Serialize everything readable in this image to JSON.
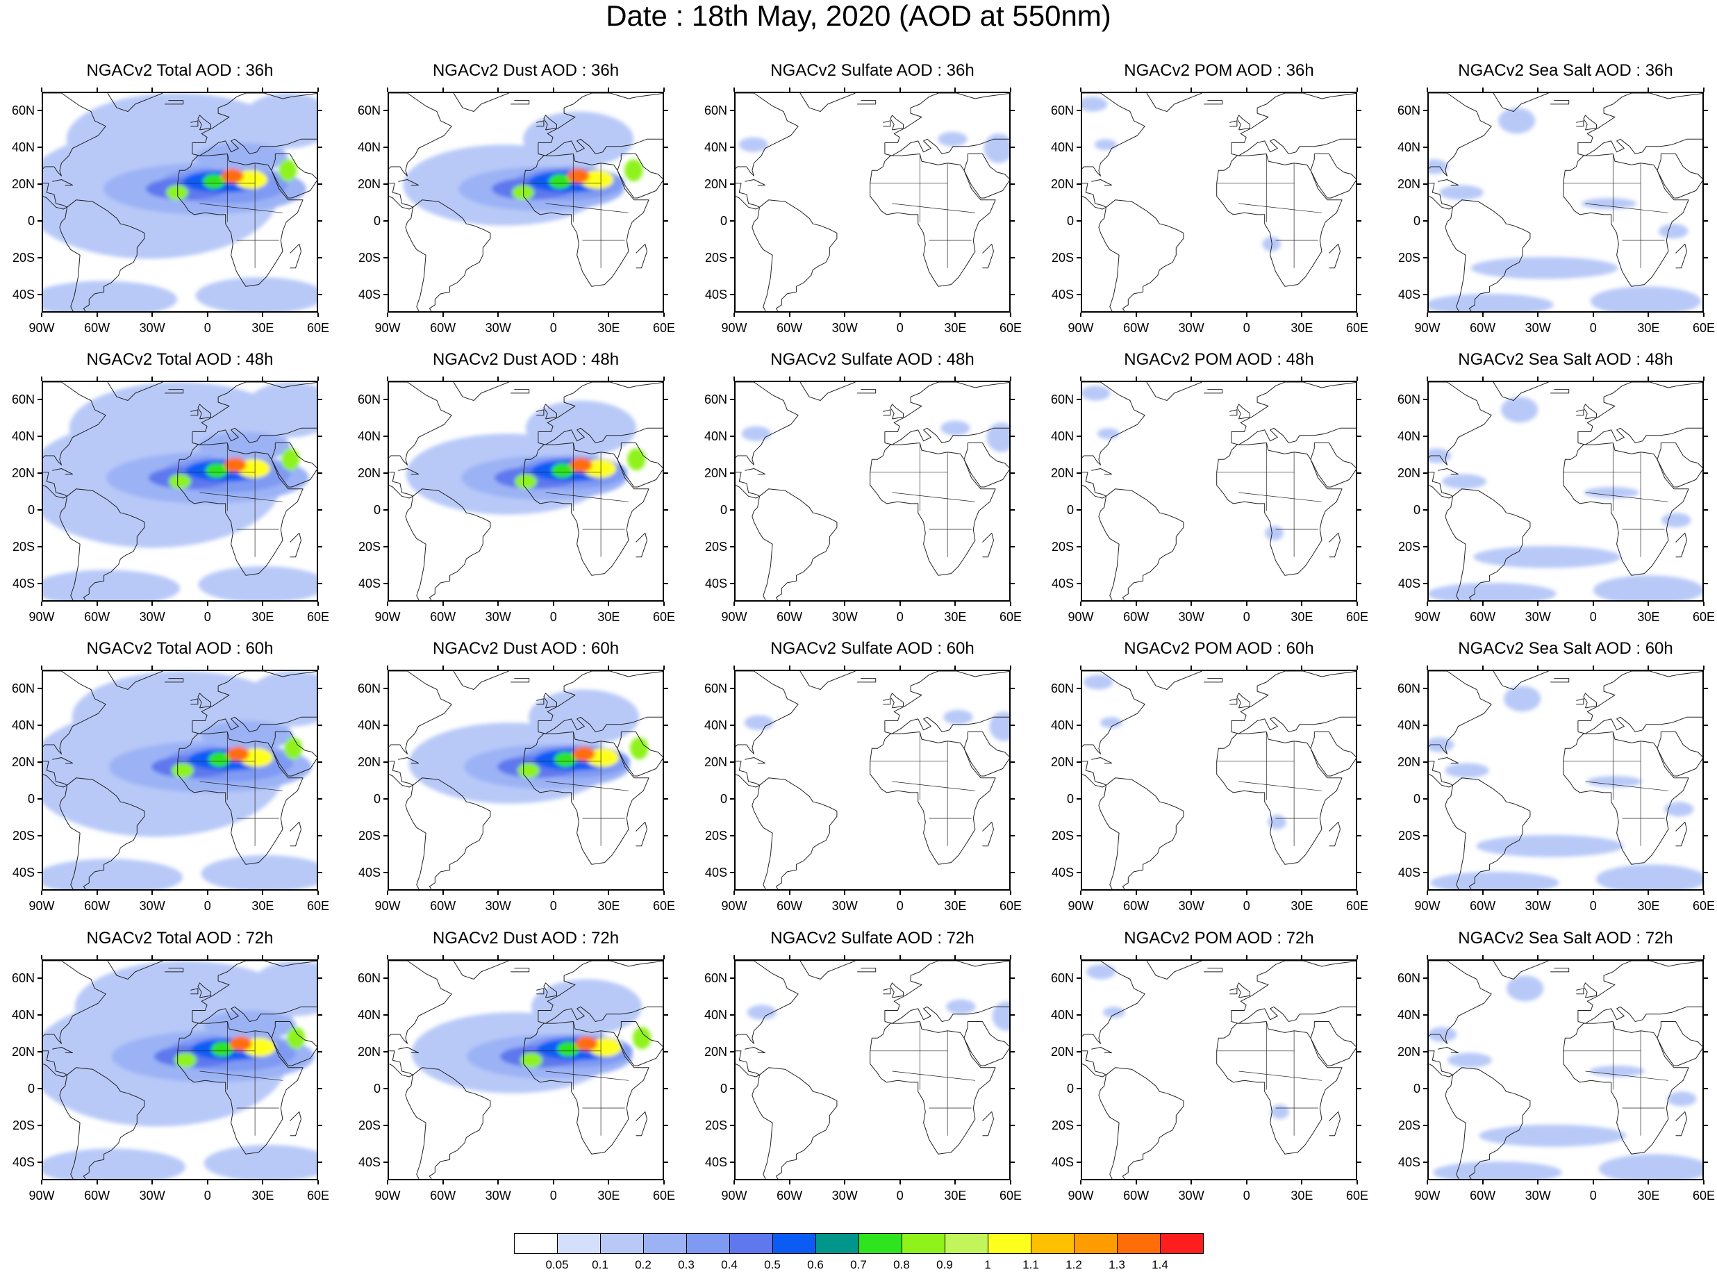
{
  "title": "Date : 18th May, 2020 (AOD at 550nm)",
  "lat_ticks": [
    "60N",
    "40N",
    "20N",
    "0",
    "20S",
    "40S"
  ],
  "lat_values": [
    60,
    40,
    20,
    0,
    -20,
    -40
  ],
  "lon_ticks": [
    "90W",
    "60W",
    "30W",
    "0",
    "30E",
    "60E"
  ],
  "lon_values": [
    -90,
    -60,
    -30,
    0,
    30,
    60
  ],
  "map_extent": {
    "lon": [
      -90,
      60
    ],
    "lat": [
      -50,
      70
    ]
  },
  "rows": [
    {
      "panels": [
        {
          "title": "NGACv2 Total AOD : 36h",
          "species": "total"
        },
        {
          "title": "NGACv2 Dust AOD : 36h",
          "species": "dust"
        },
        {
          "title": "NGACv2 Sulfate AOD : 36h",
          "species": "sulfate"
        },
        {
          "title": "NGACv2 POM AOD : 36h",
          "species": "pom"
        },
        {
          "title": "NGACv2 Sea Salt AOD : 36h",
          "species": "seasalt"
        }
      ]
    },
    {
      "panels": [
        {
          "title": "NGACv2 Total AOD : 48h",
          "species": "total"
        },
        {
          "title": "NGACv2 Dust AOD : 48h",
          "species": "dust"
        },
        {
          "title": "NGACv2 Sulfate AOD : 48h",
          "species": "sulfate"
        },
        {
          "title": "NGACv2 POM AOD : 48h",
          "species": "pom"
        },
        {
          "title": "NGACv2 Sea Salt AOD : 48h",
          "species": "seasalt"
        }
      ]
    },
    {
      "panels": [
        {
          "title": "NGACv2 Total AOD : 60h",
          "species": "total"
        },
        {
          "title": "NGACv2 Dust AOD : 60h",
          "species": "dust"
        },
        {
          "title": "NGACv2 Sulfate AOD : 60h",
          "species": "sulfate"
        },
        {
          "title": "NGACv2 POM AOD : 60h",
          "species": "pom"
        },
        {
          "title": "NGACv2 Sea Salt AOD : 60h",
          "species": "seasalt"
        }
      ]
    },
    {
      "panels": [
        {
          "title": "NGACv2 Total AOD : 72h",
          "species": "total"
        },
        {
          "title": "NGACv2 Dust AOD : 72h",
          "species": "dust"
        },
        {
          "title": "NGACv2 Sulfate AOD : 72h",
          "species": "sulfate"
        },
        {
          "title": "NGACv2 POM AOD : 72h",
          "species": "pom"
        },
        {
          "title": "NGACv2 Sea Salt  AOD : 72h",
          "species": "seasalt"
        }
      ]
    }
  ],
  "colorbar": {
    "colors": [
      "#ffffff",
      "#d4e0fb",
      "#b8c9f8",
      "#9bb2f5",
      "#7f9af3",
      "#5f78ee",
      "#0a5cf5",
      "#00968c",
      "#2ee41c",
      "#8ff21a",
      "#c2f55a",
      "#ffff1e",
      "#ffc000",
      "#ff9c00",
      "#ff6d08",
      "#ff1e1e"
    ],
    "labels": [
      "0.05",
      "0.1",
      "0.2",
      "0.3",
      "0.4",
      "0.5",
      "0.6",
      "0.7",
      "0.8",
      "0.9",
      "1",
      "1.1",
      "1.2",
      "1.3",
      "1.4"
    ]
  }
}
